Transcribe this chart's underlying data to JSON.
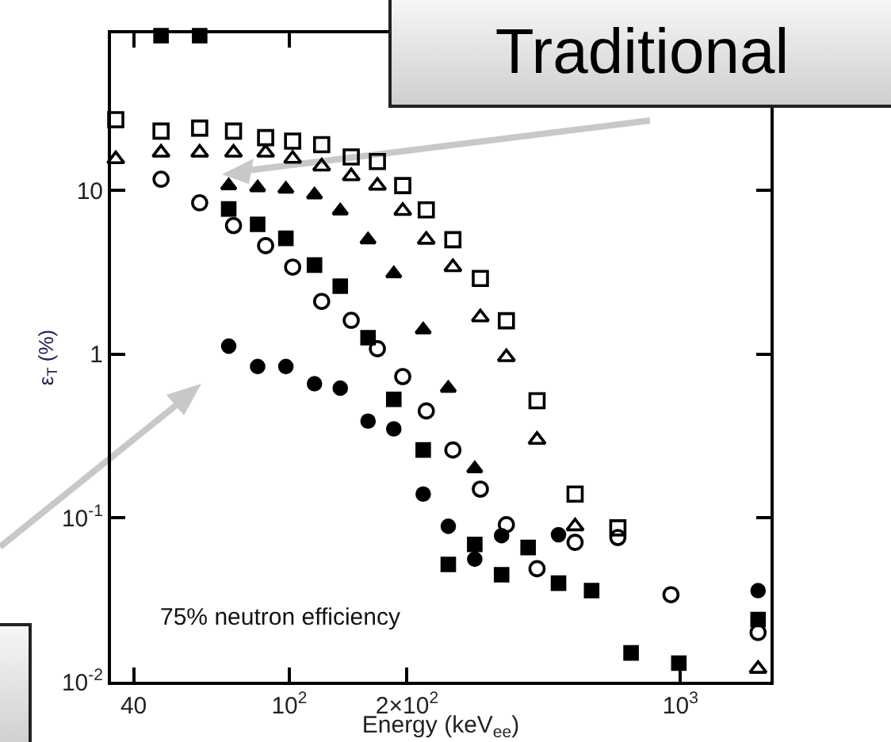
{
  "chart_data": {
    "type": "scatter",
    "xlabel": "Energy (keV$_{ee}$)",
    "ylabel": "ε$_{T}$ (%)",
    "log": "xy",
    "grid": false,
    "xlim": [
      35,
      1700
    ],
    "xticks": [
      40,
      {
        "value": 100,
        "label": "10$^{2}$"
      },
      {
        "value": 200,
        "label": "2×10$^{2}$"
      },
      {
        "value": 1000,
        "label": "10$^{3}$"
      }
    ],
    "ylim": [
      0.01,
      91
    ],
    "yticks": [
      {
        "value": 0.01,
        "label": "10$^{-2}$"
      },
      {
        "value": 0.1,
        "label": "10$^{-1}$"
      },
      1,
      10
    ],
    "annotations": [
      "75% neutron efficiency",
      "Traditional"
    ],
    "series": [
      {
        "color": "#000000",
        "marker": "square-open",
        "x": [
          36,
          47,
          59,
          72,
          87,
          102,
          121,
          144,
          168,
          195,
          224,
          262,
          308,
          359,
          430,
          538,
          692
        ],
        "values": [
          27,
          23,
          24,
          23,
          21,
          20,
          19,
          16,
          15,
          10.7,
          7.6,
          5.0,
          2.9,
          1.6,
          0.52,
          0.14,
          0.087
        ]
      },
      {
        "color": "#000000",
        "marker": "triangle-open",
        "x": [
          36,
          47,
          59,
          72,
          87,
          102,
          121,
          144,
          168,
          195,
          224,
          262,
          308,
          359,
          430,
          538,
          1580
        ],
        "values": [
          15.5,
          17,
          17,
          17,
          17,
          15.6,
          14,
          12.2,
          10.7,
          7.5,
          5.0,
          3.4,
          1.68,
          0.96,
          0.3,
          0.089,
          0.012
        ]
      },
      {
        "color": "#000000",
        "marker": "triangle",
        "x": [
          70,
          83,
          98,
          116,
          135,
          159,
          185,
          220,
          255,
          298
        ],
        "values": [
          10.7,
          10.4,
          10.2,
          9.4,
          7.5,
          5.0,
          3.1,
          1.41,
          0.62,
          0.2
        ]
      },
      {
        "color": "#000000",
        "marker": "circle-open",
        "x": [
          47,
          59,
          72,
          87,
          102,
          121,
          144,
          168,
          195,
          224,
          262,
          308,
          359,
          430,
          538,
          692,
          946,
          1580
        ],
        "values": [
          11.7,
          8.4,
          6.1,
          4.6,
          3.4,
          2.1,
          1.61,
          1.08,
          0.73,
          0.45,
          0.26,
          0.15,
          0.091,
          0.049,
          0.071,
          0.076,
          0.034,
          0.02
        ]
      },
      {
        "color": "#000000",
        "marker": "square",
        "x": [
          47,
          59,
          70,
          83,
          98,
          116,
          135,
          159,
          185,
          220,
          255,
          298,
          349,
          408,
          488,
          593,
          748,
          991,
          1580
        ],
        "values": [
          88,
          88,
          7.7,
          6.2,
          5.1,
          3.5,
          2.6,
          1.26,
          0.53,
          0.26,
          0.052,
          0.069,
          0.045,
          0.066,
          0.04,
          0.036,
          0.015,
          0.013,
          0.024
        ]
      },
      {
        "color": "#000000",
        "marker": "circle",
        "x": [
          70,
          83,
          98,
          116,
          135,
          159,
          185,
          220,
          255,
          298,
          349,
          488,
          1580
        ],
        "values": [
          1.12,
          0.84,
          0.84,
          0.66,
          0.62,
          0.39,
          0.35,
          0.14,
          0.089,
          0.056,
          0.078,
          0.079,
          0.036
        ]
      }
    ]
  }
}
